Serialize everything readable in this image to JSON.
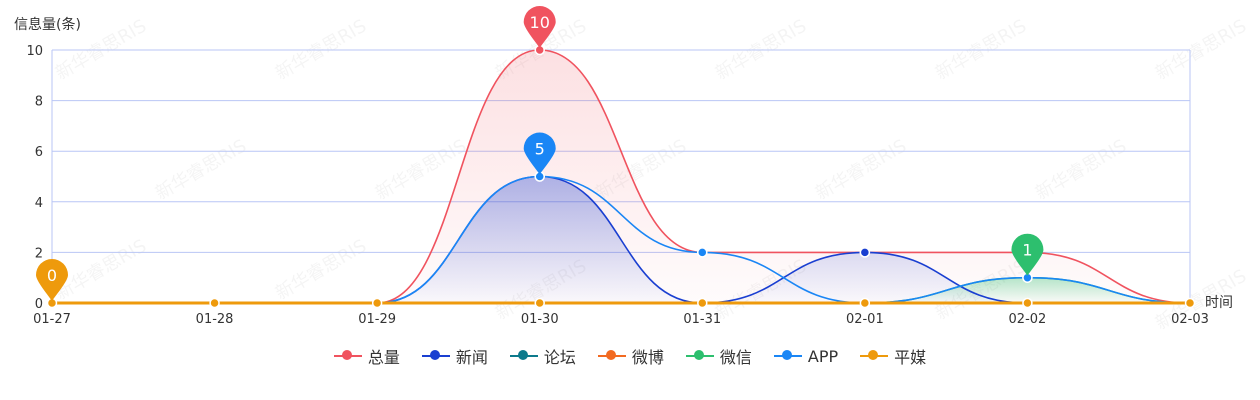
{
  "chart_data": {
    "type": "line",
    "ylabel": "信息量(条)",
    "xlabel": "时间",
    "categories": [
      "01-27",
      "01-28",
      "01-29",
      "01-30",
      "01-31",
      "02-01",
      "02-02",
      "02-03"
    ],
    "ylim": [
      0,
      10
    ],
    "yticks": [
      0,
      2,
      4,
      6,
      8,
      10
    ],
    "series": [
      {
        "name": "总量",
        "color": "#f0535f",
        "values": [
          0,
          0,
          0,
          10,
          2,
          2,
          2,
          0
        ],
        "area": true,
        "markpoint": {
          "index": 3,
          "value": "10"
        }
      },
      {
        "name": "新闻",
        "color": "#1a3fd1",
        "values": [
          0,
          0,
          0,
          5,
          0,
          2,
          0,
          0
        ],
        "area": true
      },
      {
        "name": "论坛",
        "color": "#0d7a8c",
        "values": [
          0,
          0,
          0,
          0,
          0,
          0,
          0,
          0
        ]
      },
      {
        "name": "微博",
        "color": "#f26a21",
        "values": [
          0,
          0,
          0,
          0,
          0,
          0,
          0,
          0
        ]
      },
      {
        "name": "微信",
        "color": "#2dbf6e",
        "values": [
          0,
          0,
          0,
          0,
          0,
          0,
          1,
          0
        ],
        "area": true,
        "markpoint": {
          "index": 6,
          "value": "1"
        }
      },
      {
        "name": "APP",
        "color": "#1a86f5",
        "values": [
          0,
          0,
          0,
          5,
          2,
          0,
          1,
          0
        ],
        "markpoint": {
          "index": 3,
          "value": "5"
        }
      },
      {
        "name": "平媒",
        "color": "#ee9a0c",
        "values": [
          0,
          0,
          0,
          0,
          0,
          0,
          0,
          0
        ],
        "markpoint": {
          "index": 0,
          "value": "0"
        }
      }
    ],
    "legend": "bottom-center",
    "grid": true
  },
  "watermark_text": "新华睿思RIS"
}
